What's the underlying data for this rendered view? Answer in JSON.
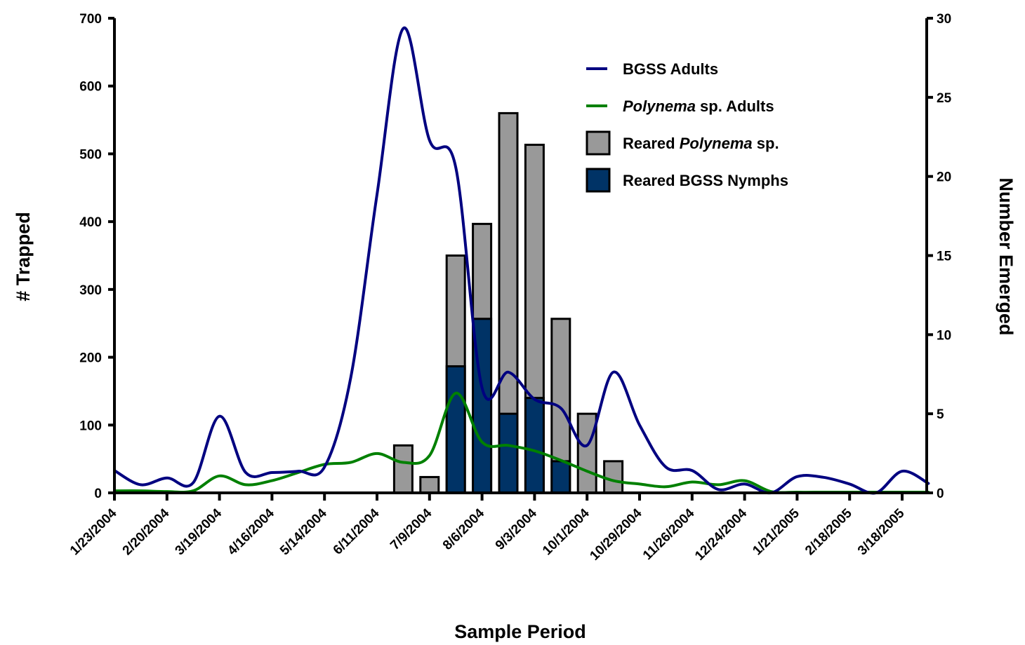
{
  "chart_data": {
    "type": "bar+line",
    "title": "",
    "xlabel": "Sample Period",
    "ylabel_left": "# Trapped",
    "ylabel_right": "Number Emerged",
    "ylim_left": [
      0,
      700
    ],
    "ylim_right": [
      0,
      30
    ],
    "yticks_left": [
      "0",
      "100",
      "200",
      "300",
      "400",
      "500",
      "600",
      "700"
    ],
    "yticks_right": [
      "0",
      "5",
      "10",
      "15",
      "20",
      "25",
      "30"
    ],
    "x_tick_labels": [
      "1/23/2004",
      "2/20/2004",
      "3/19/2004",
      "4/16/2004",
      "5/14/2004",
      "6/11/2004",
      "7/9/2004",
      "8/6/2004",
      "9/3/2004",
      "10/1/2004",
      "10/29/2004",
      "11/26/2004",
      "12/24/2004",
      "1/21/2005",
      "2/18/2005",
      "3/18/2005"
    ],
    "grid": false,
    "legend_position": "top-right",
    "legend": [
      {
        "kind": "line",
        "color": "#000080",
        "pre": "BGSS Adults",
        "ital": "",
        "post": ""
      },
      {
        "kind": "line",
        "color": "#008000",
        "pre": "",
        "ital": "Polynema",
        "post": " sp. Adults"
      },
      {
        "kind": "box",
        "color": "#999999",
        "pre": "Reared ",
        "ital": "Polynema",
        "post": " sp."
      },
      {
        "kind": "box",
        "color": "#003366",
        "pre": "Reared BGSS Nymphs",
        "ital": "",
        "post": ""
      }
    ],
    "line_series": [
      {
        "name": "BGSS Adults",
        "axis": "left",
        "color": "#000080",
        "x": [
          "1/23/2004",
          "2/6/2004",
          "2/20/2004",
          "3/5/2004",
          "3/19/2004",
          "4/2/2004",
          "4/16/2004",
          "4/30/2004",
          "5/14/2004",
          "5/28/2004",
          "6/11/2004",
          "6/25/2004",
          "7/9/2004",
          "7/23/2004",
          "8/6/2004",
          "8/20/2004",
          "9/3/2004",
          "9/17/2004",
          "10/1/2004",
          "10/15/2004",
          "10/29/2004",
          "11/12/2004",
          "11/26/2004",
          "12/10/2004",
          "12/24/2004",
          "1/7/2005",
          "1/21/2005",
          "2/4/2005",
          "2/18/2005",
          "3/4/2005",
          "3/18/2005",
          "4/1/2005"
        ],
        "y": [
          33,
          12,
          22,
          15,
          113,
          30,
          30,
          32,
          38,
          170,
          440,
          685,
          520,
          480,
          155,
          178,
          138,
          125,
          70,
          178,
          100,
          38,
          33,
          5,
          13,
          0,
          24,
          23,
          13,
          0,
          32,
          14
        ]
      },
      {
        "name": "Polynema sp. Adults",
        "axis": "left",
        "color": "#008000",
        "x": [
          "1/23/2004",
          "2/6/2004",
          "2/20/2004",
          "3/5/2004",
          "3/19/2004",
          "4/2/2004",
          "4/16/2004",
          "4/30/2004",
          "5/14/2004",
          "5/28/2004",
          "6/11/2004",
          "6/25/2004",
          "7/9/2004",
          "7/23/2004",
          "8/6/2004",
          "8/20/2004",
          "9/3/2004",
          "9/17/2004",
          "10/1/2004",
          "10/15/2004",
          "10/29/2004",
          "11/12/2004",
          "11/26/2004",
          "12/10/2004",
          "12/24/2004",
          "1/7/2005",
          "1/21/2005",
          "2/4/2005",
          "2/18/2005",
          "3/4/2005",
          "3/18/2005",
          "4/1/2005"
        ],
        "y": [
          3,
          3,
          2,
          3,
          25,
          12,
          18,
          30,
          42,
          45,
          58,
          45,
          55,
          147,
          75,
          70,
          62,
          48,
          32,
          18,
          13,
          9,
          16,
          12,
          18,
          2,
          1,
          1,
          1,
          1,
          1,
          1
        ]
      }
    ],
    "bar_series": [
      {
        "name": "Reared Polynema sp.",
        "axis": "right",
        "color": "#999999",
        "x": [
          "6/25/2004",
          "7/9/2004",
          "7/23/2004",
          "8/6/2004",
          "8/20/2004",
          "9/3/2004",
          "9/17/2004",
          "10/1/2004",
          "10/15/2004",
          "10/29/2004"
        ],
        "totals": [
          3,
          1,
          15,
          17,
          24,
          22,
          11,
          5,
          2,
          0
        ]
      },
      {
        "name": "Reared BGSS Nymphs",
        "axis": "right",
        "color": "#003366",
        "x": [
          "6/25/2004",
          "7/9/2004",
          "7/23/2004",
          "8/6/2004",
          "8/20/2004",
          "9/3/2004",
          "9/17/2004",
          "10/1/2004",
          "10/15/2004",
          "10/29/2004"
        ],
        "values": [
          0,
          0,
          8,
          11,
          5,
          6,
          2,
          0,
          0,
          0
        ]
      }
    ]
  }
}
